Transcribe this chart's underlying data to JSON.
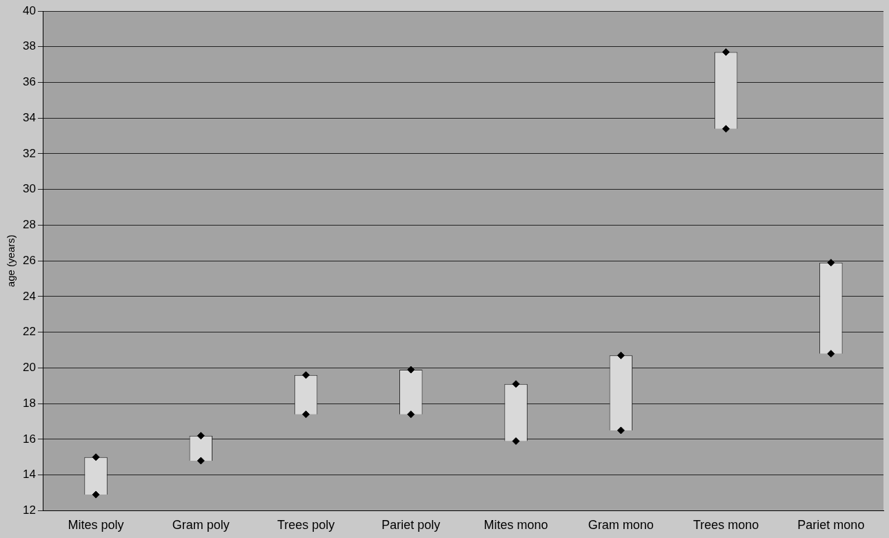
{
  "chart_data": {
    "type": "bar",
    "ylabel": "age (years)",
    "categories": [
      "Mites poly",
      "Gram poly",
      "Trees poly",
      "Pariet poly",
      "Mites mono",
      "Gram mono",
      "Trees mono",
      "Pariet mono"
    ],
    "series": [
      {
        "color": "#d9d9d9",
        "base": [
          12.9,
          14.8,
          17.4,
          17.4,
          15.9,
          16.5,
          33.4,
          20.8
        ],
        "values": [
          2.1,
          1.4,
          2.2,
          2.5,
          3.2,
          4.2,
          4.3,
          5.1
        ]
      },
      {
        "type": "scatter",
        "color": "#000000",
        "marker": "diamond",
        "x": [
          "Mites poly",
          "Gram poly",
          "Trees poly",
          "Pariet poly",
          "Mites mono",
          "Gram mono",
          "Trees mono",
          "Pariet mono"
        ],
        "values": [
          15.0,
          16.2,
          19.6,
          19.9,
          19.1,
          20.7,
          37.7,
          25.9
        ]
      },
      {
        "type": "scatter",
        "color": "#000000",
        "marker": "diamond",
        "x": [
          "Mites poly",
          "Gram poly",
          "Trees poly",
          "Pariet poly",
          "Mites mono",
          "Gram mono",
          "Trees mono",
          "Pariet mono"
        ],
        "values": [
          12.9,
          14.8,
          17.4,
          17.4,
          15.9,
          16.5,
          33.4,
          20.8
        ]
      }
    ],
    "ylim": [
      12,
      40
    ],
    "yticks": [
      12,
      14,
      16,
      18,
      20,
      22,
      24,
      26,
      28,
      30,
      32,
      34,
      36,
      38,
      40
    ],
    "grid": "y",
    "legend": false
  }
}
